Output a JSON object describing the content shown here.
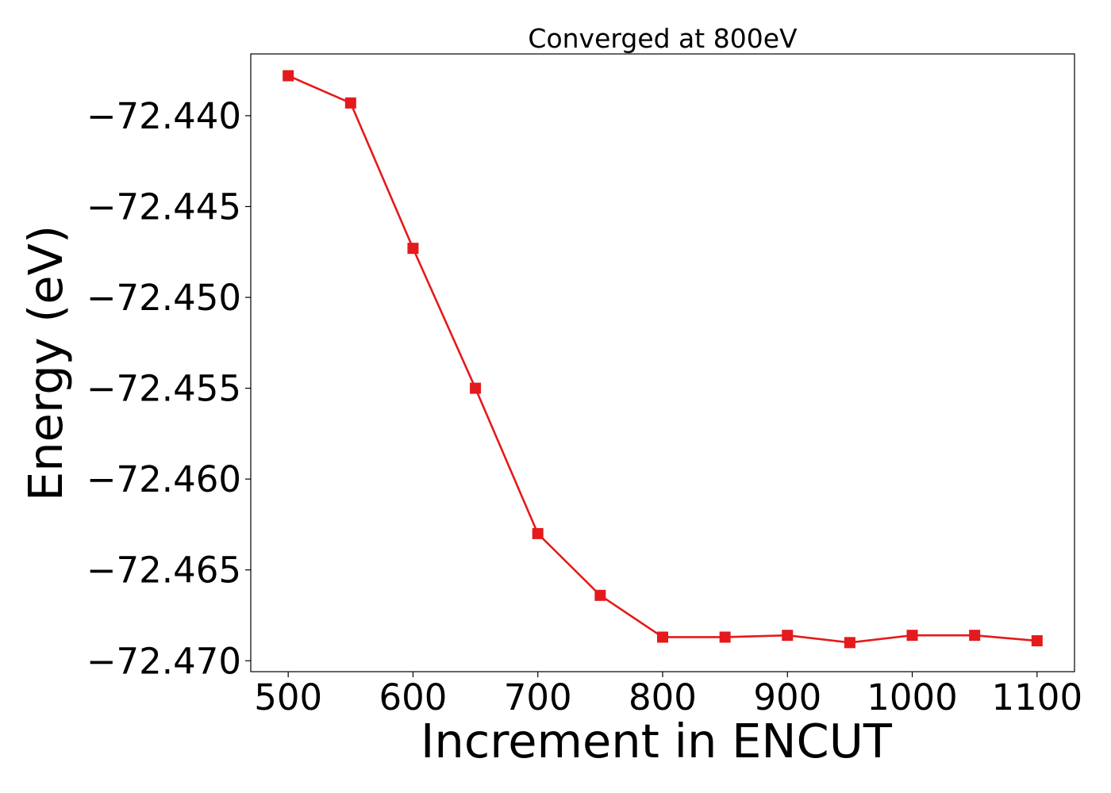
{
  "chart_data": {
    "type": "line",
    "title": "Converged at 800eV",
    "xlabel": "Increment in ENCUT",
    "ylabel": "Energy (eV)",
    "xlim": [
      470,
      1130
    ],
    "ylim": [
      -72.4706,
      -72.4366
    ],
    "x_ticks": [
      500,
      600,
      700,
      800,
      900,
      1000,
      1100
    ],
    "x_tick_labels": [
      "500",
      "600",
      "700",
      "800",
      "900",
      "1000",
      "1100"
    ],
    "y_ticks": [
      -72.44,
      -72.445,
      -72.45,
      -72.455,
      -72.46,
      -72.465,
      -72.47
    ],
    "y_tick_labels": [
      "−72.440",
      "−72.445",
      "−72.450",
      "−72.455",
      "−72.460",
      "−72.465",
      "−72.470"
    ],
    "grid": false,
    "color": "#e41a1c",
    "marker": "square",
    "x": [
      500,
      550,
      600,
      650,
      700,
      750,
      800,
      850,
      900,
      950,
      1000,
      1050,
      1100
    ],
    "series": [
      {
        "values": [
          -72.4378,
          -72.4393,
          -72.4473,
          -72.455,
          -72.463,
          -72.4664,
          -72.4687,
          -72.4687,
          -72.4686,
          -72.469,
          -72.4686,
          -72.4686,
          -72.4689
        ]
      }
    ]
  }
}
